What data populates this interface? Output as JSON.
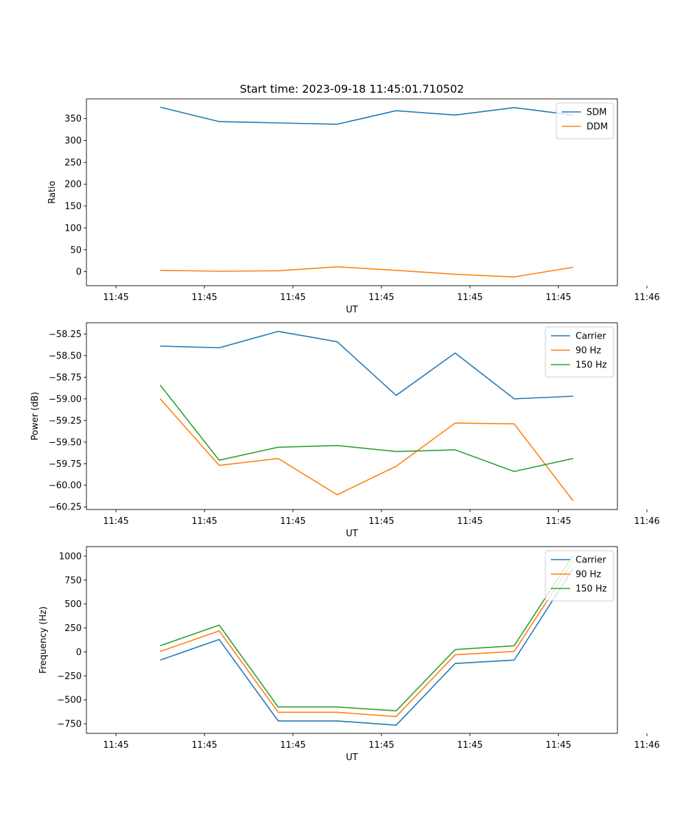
{
  "chart_data": [
    {
      "type": "line",
      "title": "Start time: 2023-09-18 11:45:01.710502",
      "xlabel": "UT",
      "ylabel": "Ratio",
      "xlim": [
        -0.5,
        8.5
      ],
      "ylim": [
        -32,
        395
      ],
      "xticks": [
        0,
        1.5,
        3,
        4.5,
        6,
        7.5,
        9
      ],
      "xtick_labels": [
        "11:45",
        "11:45",
        "11:45",
        "11:45",
        "11:45",
        "11:45",
        "11:46"
      ],
      "yticks": [
        0,
        50,
        100,
        150,
        200,
        250,
        300,
        350
      ],
      "ytick_labels": [
        "0",
        "50",
        "100",
        "150",
        "200",
        "250",
        "300",
        "350"
      ],
      "legend": "top-right",
      "x": [
        0.75,
        1.75,
        2.75,
        3.75,
        4.75,
        5.75,
        6.75,
        7.75
      ],
      "series": [
        {
          "name": "SDM",
          "color": "#1f77b4",
          "values": [
            376,
            343,
            340,
            337,
            368,
            358,
            375,
            358
          ]
        },
        {
          "name": "DDM",
          "color": "#ff7f0e",
          "values": [
            3,
            1,
            2,
            11,
            3,
            -6,
            -12,
            10
          ]
        }
      ]
    },
    {
      "type": "line",
      "title": "",
      "xlabel": "UT",
      "ylabel": "Power (dB)",
      "xlim": [
        -0.5,
        8.5
      ],
      "ylim": [
        -60.28,
        -58.12
      ],
      "xticks": [
        0,
        1.5,
        3,
        4.5,
        6,
        7.5,
        9
      ],
      "xtick_labels": [
        "11:45",
        "11:45",
        "11:45",
        "11:45",
        "11:45",
        "11:45",
        "11:46"
      ],
      "yticks": [
        -60.25,
        -60.0,
        -59.75,
        -59.5,
        -59.25,
        -59.0,
        -58.75,
        -58.5,
        -58.25
      ],
      "ytick_labels": [
        "−60.25",
        "−60.00",
        "−59.75",
        "−59.50",
        "−59.25",
        "−59.00",
        "−58.75",
        "−58.50",
        "−58.25"
      ],
      "legend": "top-right",
      "x": [
        0.75,
        1.75,
        2.75,
        3.75,
        4.75,
        5.75,
        6.75,
        7.75
      ],
      "series": [
        {
          "name": "Carrier",
          "color": "#1f77b4",
          "values": [
            -58.39,
            -58.41,
            -58.22,
            -58.34,
            -58.96,
            -58.47,
            -59.0,
            -58.97
          ]
        },
        {
          "name": "90 Hz",
          "color": "#ff7f0e",
          "values": [
            -59.0,
            -59.77,
            -59.69,
            -60.11,
            -59.78,
            -59.28,
            -59.29,
            -60.18
          ]
        },
        {
          "name": "150 Hz",
          "color": "#2ca02c",
          "values": [
            -58.84,
            -59.71,
            -59.56,
            -59.54,
            -59.61,
            -59.59,
            -59.84,
            -59.69
          ]
        }
      ]
    },
    {
      "type": "line",
      "title": "",
      "xlabel": "UT",
      "ylabel": "Frequency (Hz)",
      "xlim": [
        -0.5,
        8.5
      ],
      "ylim": [
        -850,
        1100
      ],
      "xticks": [
        0,
        1.5,
        3,
        4.5,
        6,
        7.5,
        9
      ],
      "xtick_labels": [
        "11:45",
        "11:45",
        "11:45",
        "11:45",
        "11:45",
        "11:45",
        "11:46"
      ],
      "yticks": [
        -750,
        -500,
        -250,
        0,
        250,
        500,
        750,
        1000
      ],
      "ytick_labels": [
        "−750",
        "−500",
        "−250",
        "0",
        "250",
        "500",
        "750",
        "1000"
      ],
      "legend": "top-right",
      "x": [
        0.75,
        1.75,
        2.75,
        3.75,
        4.75,
        5.75,
        6.75,
        7.75
      ],
      "series": [
        {
          "name": "Carrier",
          "color": "#1f77b4",
          "values": [
            -85,
            130,
            -720,
            -720,
            -765,
            -120,
            -85,
            870
          ]
        },
        {
          "name": "90 Hz",
          "color": "#ff7f0e",
          "values": [
            5,
            220,
            -630,
            -630,
            -675,
            -30,
            5,
            950
          ]
        },
        {
          "name": "150 Hz",
          "color": "#2ca02c",
          "values": [
            65,
            280,
            -575,
            -575,
            -615,
            25,
            65,
            1010
          ]
        }
      ]
    }
  ]
}
